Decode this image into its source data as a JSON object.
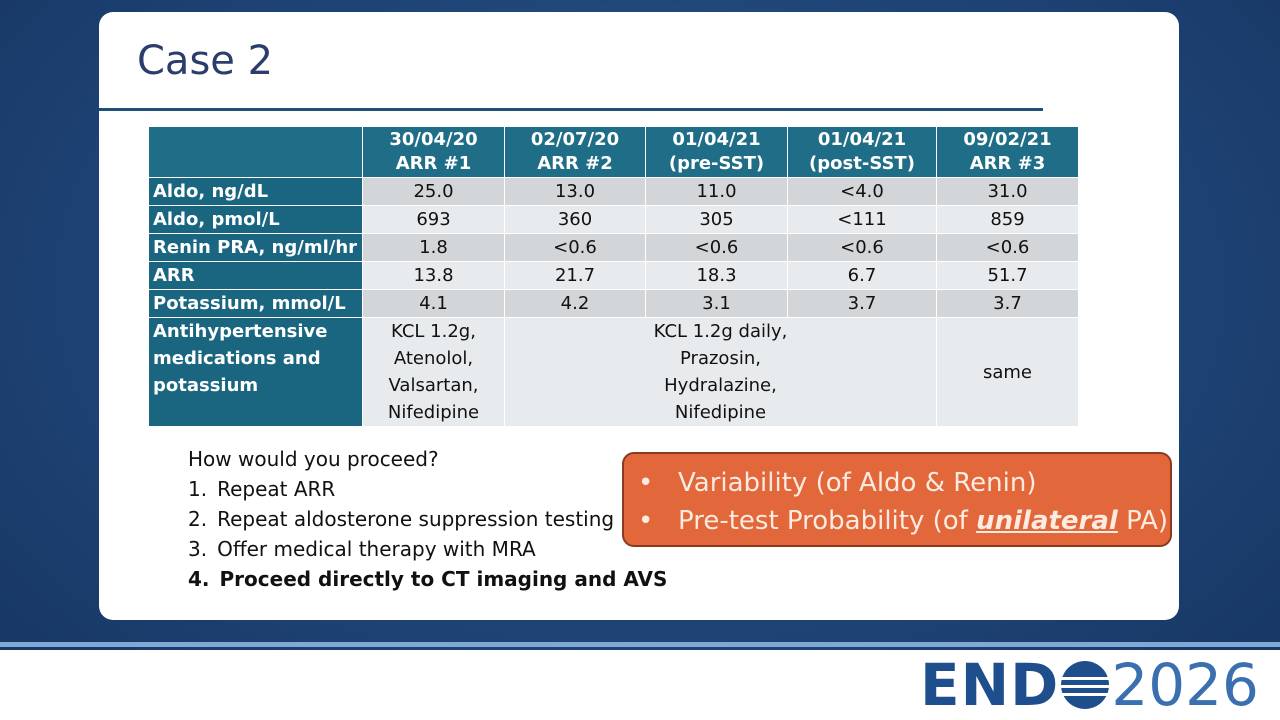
{
  "title": "Case 2",
  "table": {
    "columns": [
      [
        "30/04/20",
        "ARR #1"
      ],
      [
        "02/07/20",
        "ARR #2"
      ],
      [
        "01/04/21",
        "(pre-SST)"
      ],
      [
        "01/04/21",
        "(post-SST)"
      ],
      [
        "09/02/21",
        "ARR #3"
      ]
    ],
    "rows": [
      {
        "label": "Aldo, ng/dL",
        "cells": [
          "25.0",
          "13.0",
          "11.0",
          "<4.0",
          "31.0"
        ]
      },
      {
        "label": "Aldo, pmol/L",
        "cells": [
          "693",
          "360",
          "305",
          "<111",
          "859"
        ]
      },
      {
        "label": "Renin PRA, ng/ml/hr",
        "cells": [
          "1.8",
          "<0.6",
          "<0.6",
          "<0.6",
          "<0.6"
        ]
      },
      {
        "label": "ARR",
        "cells": [
          "13.8",
          "21.7",
          "18.3",
          "6.7",
          "51.7"
        ]
      },
      {
        "label": "Potassium, mmol/L",
        "cells": [
          "4.1",
          "4.2",
          "3.1",
          "3.7",
          "3.7"
        ]
      }
    ],
    "medications": {
      "label": "Antihypertensive medications and potassium",
      "first": [
        "KCL 1.2g,",
        "Atenolol,",
        "Valsartan,",
        "Nifedipine"
      ],
      "middle": [
        "KCL 1.2g daily,",
        "Prazosin,",
        "Hydralazine,",
        "Nifedipine"
      ],
      "last": "same"
    }
  },
  "question": "How would you proceed?",
  "options": [
    {
      "number": "1.",
      "text": "Repeat ARR"
    },
    {
      "number": "2.",
      "text": "Repeat aldosterone suppression testing"
    },
    {
      "number": "3.",
      "text": "Offer medical therapy with MRA"
    },
    {
      "number": "4.",
      "text": "Proceed directly to CT imaging and AVS"
    }
  ],
  "callout": {
    "first": "Variability (of Aldo & Renin)",
    "second": {
      "before": "Pre-test Probability (of",
      "emphasis": "unilateral",
      "after": "PA)"
    }
  },
  "logo": {
    "left": "END",
    "right": "2026"
  }
}
